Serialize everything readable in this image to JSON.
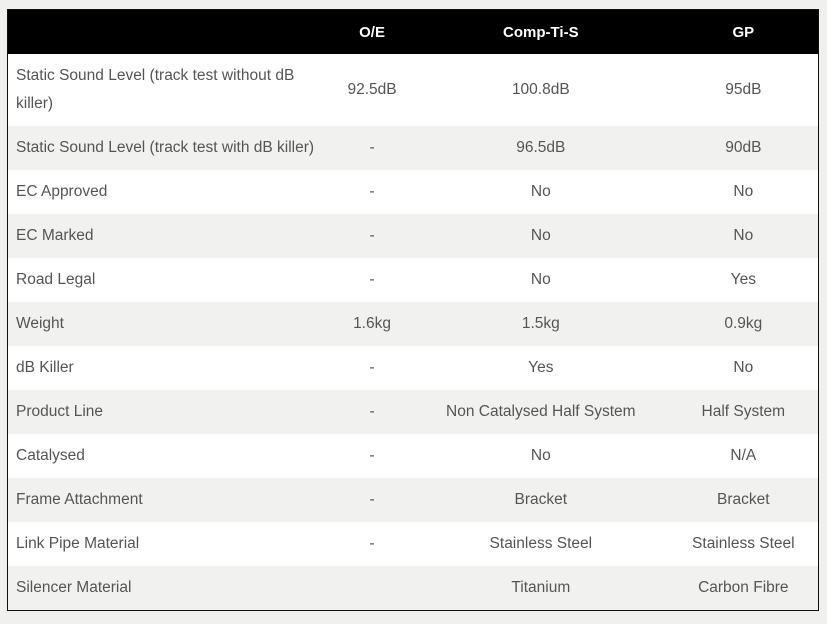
{
  "headers": [
    "",
    "O/E",
    "Comp-Ti-S",
    "GP"
  ],
  "rows": [
    {
      "label": "Static Sound Level (track test without dB killer)",
      "oe": "92.5dB",
      "comp": "100.8dB",
      "gp": "95dB"
    },
    {
      "label": "Static Sound Level (track test with dB killer)",
      "oe": "-",
      "comp": "96.5dB",
      "gp": "90dB"
    },
    {
      "label": "EC Approved",
      "oe": "-",
      "comp": "No",
      "gp": "No"
    },
    {
      "label": "EC Marked",
      "oe": "-",
      "comp": "No",
      "gp": "No"
    },
    {
      "label": "Road Legal",
      "oe": "-",
      "comp": "No",
      "gp": "Yes"
    },
    {
      "label": "Weight",
      "oe": "1.6kg",
      "comp": "1.5kg",
      "gp": "0.9kg"
    },
    {
      "label": "dB Killer",
      "oe": "-",
      "comp": "Yes",
      "gp": "No"
    },
    {
      "label": "Product Line",
      "oe": "-",
      "comp": "Non Catalysed Half System",
      "gp": "Half System"
    },
    {
      "label": "Catalysed",
      "oe": "-",
      "comp": "No",
      "gp": "N/A"
    },
    {
      "label": "Frame Attachment",
      "oe": "-",
      "comp": "Bracket",
      "gp": "Bracket"
    },
    {
      "label": "Link Pipe Material",
      "oe": "-",
      "comp": "Stainless Steel",
      "gp": "Stainless Steel"
    },
    {
      "label": "Silencer Material",
      "oe": "",
      "comp": "Titanium",
      "gp": "Carbon Fibre"
    }
  ]
}
